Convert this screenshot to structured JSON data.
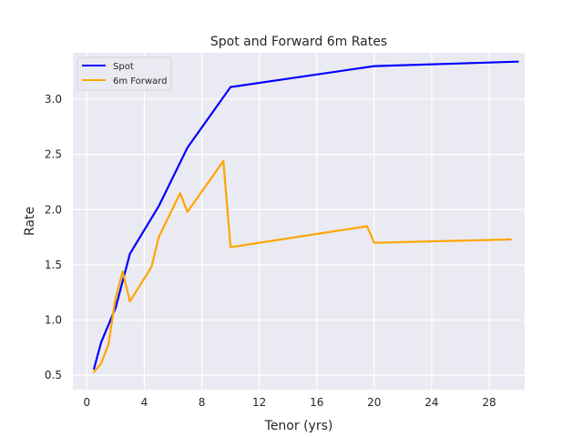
{
  "chart_data": {
    "type": "line",
    "title": "Spot and Forward 6m Rates",
    "xlabel": "Tenor (yrs)",
    "ylabel": "Rate",
    "xlim": [
      -0.97,
      30.47
    ],
    "ylim": [
      0.37,
      3.42
    ],
    "xticks": [
      0,
      4,
      8,
      12,
      16,
      20,
      24,
      28
    ],
    "xtick_labels": [
      "0",
      "4",
      "8",
      "12",
      "16",
      "20",
      "24",
      "28"
    ],
    "yticks": [
      0.5,
      1.0,
      1.5,
      2.0,
      2.5,
      3.0
    ],
    "ytick_labels": [
      "0.5",
      "1.0",
      "1.5",
      "2.0",
      "2.5",
      "3.0"
    ],
    "grid": true,
    "legend_position": "top-left",
    "series": [
      {
        "name": "Spot",
        "color": "#0000ff",
        "x": [
          0.5,
          1.0,
          2.0,
          3.0,
          5.0,
          7.0,
          10.0,
          20.0,
          30.0
        ],
        "y": [
          0.56,
          0.8,
          1.11,
          1.6,
          2.03,
          2.56,
          3.11,
          3.3,
          3.34
        ]
      },
      {
        "name": "6m Forward",
        "color": "#ffa500",
        "x": [
          0.5,
          1.0,
          1.5,
          2.0,
          2.5,
          3.0,
          4.5,
          5.0,
          6.5,
          7.0,
          9.5,
          10.0,
          19.5,
          20.0,
          29.5
        ],
        "y": [
          0.53,
          0.61,
          0.78,
          1.2,
          1.44,
          1.17,
          1.48,
          1.75,
          2.15,
          1.98,
          2.44,
          1.66,
          1.85,
          1.7,
          1.73
        ]
      }
    ]
  }
}
